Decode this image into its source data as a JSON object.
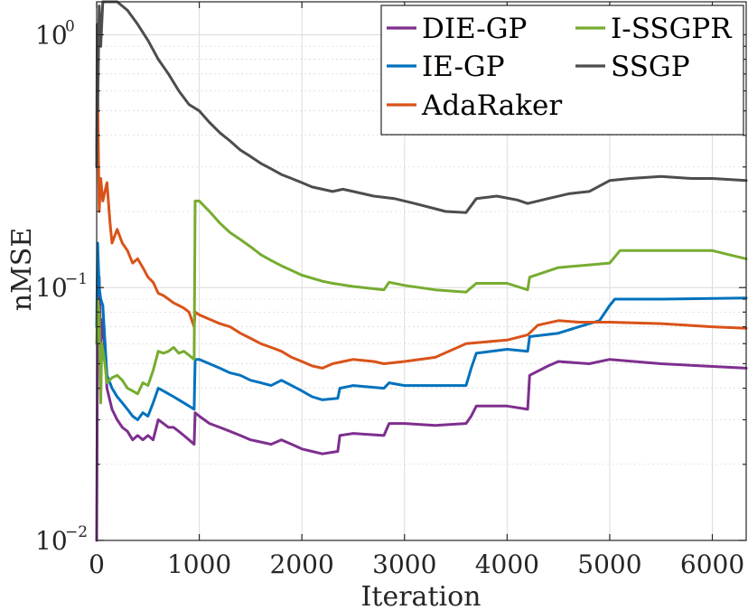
{
  "chart_data": {
    "type": "line",
    "xlabel": "Iteration",
    "ylabel": "nMSE",
    "xlim": [
      0,
      6330
    ],
    "ylim": [
      0.01,
      1.35
    ],
    "yscale": "log",
    "grid": true,
    "legend_position": "top-right",
    "x_ticks": [
      0,
      1000,
      2000,
      3000,
      4000,
      5000,
      6000
    ],
    "x_tick_labels": [
      "0",
      "1000",
      "2000",
      "3000",
      "4000",
      "5000",
      "6000"
    ],
    "y_ticks": [
      {
        "value": 0.01,
        "base": "10",
        "exp": "−2"
      },
      {
        "value": 0.1,
        "base": "10",
        "exp": "−1"
      },
      {
        "value": 1,
        "base": "10",
        "exp": "0"
      }
    ],
    "series": [
      {
        "name": "DIE-GP",
        "color": "#7E2F8E",
        "points": [
          [
            0,
            0.01
          ],
          [
            10,
            0.08
          ],
          [
            25,
            0.11
          ],
          [
            40,
            0.06
          ],
          [
            60,
            0.075
          ],
          [
            100,
            0.04
          ],
          [
            150,
            0.033
          ],
          [
            200,
            0.03
          ],
          [
            250,
            0.028
          ],
          [
            300,
            0.027
          ],
          [
            350,
            0.025
          ],
          [
            400,
            0.026
          ],
          [
            450,
            0.025
          ],
          [
            500,
            0.026
          ],
          [
            550,
            0.025
          ],
          [
            600,
            0.03
          ],
          [
            650,
            0.029
          ],
          [
            700,
            0.028
          ],
          [
            750,
            0.028
          ],
          [
            800,
            0.027
          ],
          [
            850,
            0.026
          ],
          [
            900,
            0.025
          ],
          [
            950,
            0.024
          ],
          [
            960,
            0.032
          ],
          [
            1000,
            0.031
          ],
          [
            1100,
            0.029
          ],
          [
            1200,
            0.028
          ],
          [
            1300,
            0.027
          ],
          [
            1400,
            0.026
          ],
          [
            1500,
            0.025
          ],
          [
            1600,
            0.0245
          ],
          [
            1700,
            0.024
          ],
          [
            1800,
            0.025
          ],
          [
            1900,
            0.024
          ],
          [
            2000,
            0.023
          ],
          [
            2100,
            0.0225
          ],
          [
            2200,
            0.022
          ],
          [
            2350,
            0.0225
          ],
          [
            2370,
            0.026
          ],
          [
            2500,
            0.0265
          ],
          [
            2800,
            0.026
          ],
          [
            2850,
            0.029
          ],
          [
            3000,
            0.029
          ],
          [
            3300,
            0.0285
          ],
          [
            3600,
            0.029
          ],
          [
            3650,
            0.031
          ],
          [
            3700,
            0.034
          ],
          [
            4000,
            0.034
          ],
          [
            4200,
            0.033
          ],
          [
            4220,
            0.045
          ],
          [
            4400,
            0.049
          ],
          [
            4500,
            0.051
          ],
          [
            4800,
            0.05
          ],
          [
            5000,
            0.052
          ],
          [
            5500,
            0.05
          ],
          [
            6330,
            0.048
          ]
        ]
      },
      {
        "name": "IE-GP",
        "color": "#0072BD",
        "points": [
          [
            0,
            0.07
          ],
          [
            10,
            0.15
          ],
          [
            25,
            0.1
          ],
          [
            40,
            0.09
          ],
          [
            60,
            0.085
          ],
          [
            100,
            0.045
          ],
          [
            150,
            0.04
          ],
          [
            200,
            0.037
          ],
          [
            250,
            0.035
          ],
          [
            300,
            0.033
          ],
          [
            350,
            0.031
          ],
          [
            400,
            0.03
          ],
          [
            450,
            0.032
          ],
          [
            500,
            0.031
          ],
          [
            550,
            0.035
          ],
          [
            600,
            0.04
          ],
          [
            650,
            0.039
          ],
          [
            700,
            0.038
          ],
          [
            750,
            0.037
          ],
          [
            800,
            0.036
          ],
          [
            850,
            0.035
          ],
          [
            900,
            0.034
          ],
          [
            950,
            0.033
          ],
          [
            960,
            0.052
          ],
          [
            1000,
            0.052
          ],
          [
            1100,
            0.05
          ],
          [
            1200,
            0.048
          ],
          [
            1300,
            0.046
          ],
          [
            1400,
            0.045
          ],
          [
            1500,
            0.043
          ],
          [
            1600,
            0.042
          ],
          [
            1700,
            0.041
          ],
          [
            1800,
            0.043
          ],
          [
            1900,
            0.041
          ],
          [
            2000,
            0.039
          ],
          [
            2100,
            0.037
          ],
          [
            2200,
            0.036
          ],
          [
            2350,
            0.0365
          ],
          [
            2370,
            0.04
          ],
          [
            2500,
            0.041
          ],
          [
            2800,
            0.04
          ],
          [
            2850,
            0.042
          ],
          [
            3000,
            0.041
          ],
          [
            3300,
            0.041
          ],
          [
            3600,
            0.041
          ],
          [
            3650,
            0.048
          ],
          [
            3700,
            0.055
          ],
          [
            4000,
            0.057
          ],
          [
            4200,
            0.056
          ],
          [
            4220,
            0.064
          ],
          [
            4500,
            0.066
          ],
          [
            4700,
            0.07
          ],
          [
            4900,
            0.074
          ],
          [
            5000,
            0.085
          ],
          [
            5050,
            0.09
          ],
          [
            5500,
            0.09
          ],
          [
            6330,
            0.091
          ]
        ]
      },
      {
        "name": "AdaRaker",
        "color": "#D95319",
        "points": [
          [
            0,
            0.35
          ],
          [
            10,
            0.6
          ],
          [
            25,
            0.2
          ],
          [
            40,
            0.27
          ],
          [
            60,
            0.22
          ],
          [
            100,
            0.26
          ],
          [
            130,
            0.18
          ],
          [
            150,
            0.15
          ],
          [
            200,
            0.17
          ],
          [
            250,
            0.15
          ],
          [
            300,
            0.14
          ],
          [
            350,
            0.125
          ],
          [
            400,
            0.13
          ],
          [
            450,
            0.12
          ],
          [
            500,
            0.11
          ],
          [
            550,
            0.105
          ],
          [
            600,
            0.095
          ],
          [
            650,
            0.093
          ],
          [
            700,
            0.09
          ],
          [
            750,
            0.087
          ],
          [
            800,
            0.085
          ],
          [
            850,
            0.083
          ],
          [
            900,
            0.08
          ],
          [
            950,
            0.07
          ],
          [
            960,
            0.08
          ],
          [
            1000,
            0.078
          ],
          [
            1100,
            0.075
          ],
          [
            1200,
            0.072
          ],
          [
            1300,
            0.07
          ],
          [
            1400,
            0.066
          ],
          [
            1500,
            0.063
          ],
          [
            1600,
            0.06
          ],
          [
            1700,
            0.058
          ],
          [
            1800,
            0.056
          ],
          [
            1900,
            0.053
          ],
          [
            2000,
            0.051
          ],
          [
            2100,
            0.049
          ],
          [
            2200,
            0.048
          ],
          [
            2300,
            0.05
          ],
          [
            2500,
            0.052
          ],
          [
            2700,
            0.051
          ],
          [
            2800,
            0.05
          ],
          [
            3000,
            0.051
          ],
          [
            3300,
            0.053
          ],
          [
            3600,
            0.06
          ],
          [
            3800,
            0.061
          ],
          [
            4000,
            0.062
          ],
          [
            4200,
            0.065
          ],
          [
            4300,
            0.071
          ],
          [
            4500,
            0.074
          ],
          [
            4700,
            0.073
          ],
          [
            5000,
            0.073
          ],
          [
            5500,
            0.072
          ],
          [
            6000,
            0.07
          ],
          [
            6330,
            0.069
          ]
        ]
      },
      {
        "name": "I-SSGPR",
        "color": "#77AC30",
        "points": [
          [
            0,
            0.06
          ],
          [
            10,
            0.09
          ],
          [
            25,
            0.08
          ],
          [
            40,
            0.035
          ],
          [
            50,
            0.06
          ],
          [
            80,
            0.05
          ],
          [
            100,
            0.042
          ],
          [
            150,
            0.044
          ],
          [
            200,
            0.045
          ],
          [
            250,
            0.043
          ],
          [
            300,
            0.04
          ],
          [
            350,
            0.039
          ],
          [
            400,
            0.038
          ],
          [
            450,
            0.042
          ],
          [
            500,
            0.041
          ],
          [
            550,
            0.047
          ],
          [
            600,
            0.056
          ],
          [
            650,
            0.055
          ],
          [
            700,
            0.056
          ],
          [
            750,
            0.058
          ],
          [
            800,
            0.055
          ],
          [
            850,
            0.056
          ],
          [
            900,
            0.054
          ],
          [
            950,
            0.052
          ],
          [
            960,
            0.22
          ],
          [
            1000,
            0.22
          ],
          [
            1100,
            0.2
          ],
          [
            1200,
            0.18
          ],
          [
            1300,
            0.165
          ],
          [
            1400,
            0.155
          ],
          [
            1500,
            0.145
          ],
          [
            1600,
            0.135
          ],
          [
            1700,
            0.128
          ],
          [
            1800,
            0.122
          ],
          [
            1900,
            0.117
          ],
          [
            2000,
            0.112
          ],
          [
            2100,
            0.109
          ],
          [
            2200,
            0.106
          ],
          [
            2300,
            0.104
          ],
          [
            2500,
            0.101
          ],
          [
            2800,
            0.098
          ],
          [
            2850,
            0.105
          ],
          [
            3000,
            0.102
          ],
          [
            3300,
            0.098
          ],
          [
            3600,
            0.096
          ],
          [
            3700,
            0.104
          ],
          [
            4000,
            0.104
          ],
          [
            4200,
            0.098
          ],
          [
            4220,
            0.11
          ],
          [
            4500,
            0.12
          ],
          [
            4800,
            0.123
          ],
          [
            5000,
            0.125
          ],
          [
            5100,
            0.14
          ],
          [
            5500,
            0.14
          ],
          [
            6000,
            0.14
          ],
          [
            6330,
            0.13
          ]
        ]
      },
      {
        "name": "SSGP",
        "color": "#4D4D4D",
        "points": [
          [
            0,
            0.3
          ],
          [
            5,
            1.1
          ],
          [
            10,
            0.5
          ],
          [
            25,
            1.3
          ],
          [
            40,
            0.9
          ],
          [
            60,
            1.35
          ],
          [
            100,
            1.35
          ],
          [
            150,
            1.35
          ],
          [
            200,
            1.35
          ],
          [
            300,
            1.25
          ],
          [
            400,
            1.1
          ],
          [
            500,
            0.95
          ],
          [
            600,
            0.8
          ],
          [
            700,
            0.7
          ],
          [
            800,
            0.6
          ],
          [
            900,
            0.53
          ],
          [
            1000,
            0.5
          ],
          [
            1100,
            0.45
          ],
          [
            1200,
            0.41
          ],
          [
            1300,
            0.38
          ],
          [
            1400,
            0.35
          ],
          [
            1500,
            0.33
          ],
          [
            1600,
            0.31
          ],
          [
            1700,
            0.295
          ],
          [
            1800,
            0.28
          ],
          [
            1900,
            0.27
          ],
          [
            2000,
            0.26
          ],
          [
            2100,
            0.25
          ],
          [
            2200,
            0.245
          ],
          [
            2300,
            0.24
          ],
          [
            2400,
            0.245
          ],
          [
            2500,
            0.24
          ],
          [
            2700,
            0.23
          ],
          [
            2900,
            0.225
          ],
          [
            3100,
            0.215
          ],
          [
            3300,
            0.205
          ],
          [
            3400,
            0.2
          ],
          [
            3600,
            0.198
          ],
          [
            3700,
            0.225
          ],
          [
            3900,
            0.23
          ],
          [
            4100,
            0.222
          ],
          [
            4200,
            0.215
          ],
          [
            4400,
            0.225
          ],
          [
            4600,
            0.235
          ],
          [
            4800,
            0.24
          ],
          [
            5000,
            0.265
          ],
          [
            5200,
            0.27
          ],
          [
            5500,
            0.275
          ],
          [
            5800,
            0.27
          ],
          [
            6000,
            0.27
          ],
          [
            6330,
            0.265
          ]
        ]
      }
    ]
  }
}
